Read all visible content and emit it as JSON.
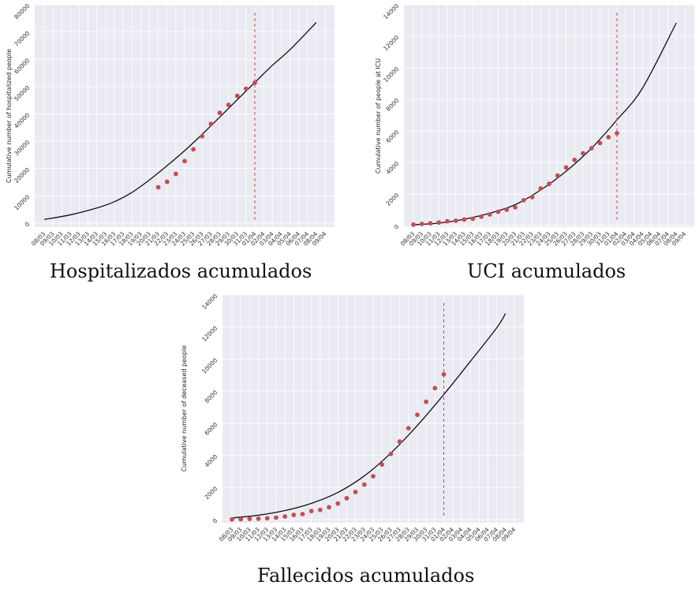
{
  "colors": {
    "plot_background": "#eaeaf2",
    "grid": "#ffffff",
    "observed_points": "#c44e52",
    "model_curve": "#111111",
    "vertical_marker": "#c44e52"
  },
  "chart_data": [
    {
      "id": "hospitalized",
      "type": "scatter",
      "title": "",
      "caption": "Hospitalizados acumulados",
      "xlabel": "",
      "ylabel": "Cumulative number of hospitalized people",
      "x_ticks": [
        "08/03",
        "09/03",
        "10/03",
        "11/03",
        "12/03",
        "13/03",
        "14/03",
        "15/03",
        "16/03",
        "17/03",
        "18/03",
        "19/03",
        "20/03",
        "21/03",
        "22/03",
        "23/03",
        "24/03",
        "25/03",
        "26/03",
        "27/03",
        "28/03",
        "29/03",
        "30/03",
        "31/03",
        "01/04",
        "02/04",
        "03/04",
        "04/04",
        "05/04",
        "06/04",
        "07/04",
        "08/04",
        "09/04"
      ],
      "y_ticks": [
        0,
        10000,
        20000,
        30000,
        40000,
        50000,
        60000,
        70000,
        80000
      ],
      "ylim": [
        -1500,
        80000
      ],
      "grid": true,
      "series": [
        {
          "kind": "observed",
          "x": [
            "21/03",
            "22/03",
            "23/03",
            "24/03",
            "25/03",
            "26/03",
            "27/03",
            "28/03",
            "29/03",
            "30/03",
            "31/03",
            "01/04"
          ],
          "values": [
            13100,
            15100,
            18000,
            22700,
            27000,
            31800,
            36300,
            40400,
            43300,
            46600,
            49200,
            51400
          ]
        },
        {
          "kind": "model",
          "x": [
            "08/03",
            "11/03",
            "14/03",
            "16/03",
            "18/03",
            "20/03",
            "22/03",
            "24/03",
            "26/03",
            "28/03",
            "30/03",
            "01/04",
            "03/04",
            "05/04",
            "08/04"
          ],
          "values": [
            1300,
            3000,
            5500,
            7800,
            11200,
            15800,
            21000,
            26500,
            32500,
            38800,
            45200,
            51500,
            57800,
            63500,
            73500
          ]
        }
      ],
      "vertical_marker_x": "01/04"
    },
    {
      "id": "icu",
      "type": "scatter",
      "title": "",
      "caption": "UCI acumulados",
      "xlabel": "",
      "ylabel": "Cumulative number of people at ICU",
      "x_ticks": [
        "08/03",
        "09/03",
        "10/03",
        "11/03",
        "12/03",
        "13/03",
        "14/03",
        "15/03",
        "16/03",
        "17/03",
        "18/03",
        "19/03",
        "20/03",
        "21/03",
        "22/03",
        "23/03",
        "24/03",
        "25/03",
        "26/03",
        "27/03",
        "28/03",
        "29/03",
        "30/03",
        "31/03",
        "01/04",
        "02/04",
        "03/04",
        "04/04",
        "05/04",
        "06/04",
        "07/04",
        "08/04",
        "09/04"
      ],
      "y_ticks": [
        0,
        2000,
        4000,
        6000,
        8000,
        10000,
        12000,
        14000
      ],
      "ylim": [
        -100,
        14000
      ],
      "grid": true,
      "series": [
        {
          "kind": "observed",
          "x": [
            "08/03",
            "09/03",
            "10/03",
            "11/03",
            "12/03",
            "13/03",
            "14/03",
            "15/03",
            "16/03",
            "17/03",
            "18/03",
            "19/03",
            "20/03",
            "21/03",
            "22/03",
            "23/03",
            "24/03",
            "25/03",
            "26/03",
            "27/03",
            "28/03",
            "29/03",
            "30/03",
            "31/03",
            "01/04"
          ],
          "values": [
            60,
            100,
            140,
            190,
            270,
            300,
            380,
            430,
            560,
            700,
            870,
            1000,
            1150,
            1600,
            1800,
            2350,
            2640,
            3170,
            3680,
            4160,
            4580,
            4900,
            5230,
            5600,
            5850
          ]
        },
        {
          "kind": "model",
          "x": [
            "08/03",
            "11/03",
            "14/03",
            "17/03",
            "20/03",
            "23/03",
            "26/03",
            "29/03",
            "01/04",
            "04/04",
            "08/04"
          ],
          "values": [
            50,
            150,
            400,
            780,
            1320,
            2250,
            3440,
            4900,
            6700,
            8700,
            12850
          ]
        }
      ],
      "vertical_marker_x": "01/04"
    },
    {
      "id": "deceased",
      "type": "scatter",
      "title": "",
      "caption": "Fallecidos acumulados",
      "xlabel": "",
      "ylabel": "Cumulative number of deceased people",
      "x_ticks": [
        "08/03",
        "09/03",
        "10/03",
        "11/03",
        "12/03",
        "13/03",
        "14/03",
        "15/03",
        "16/03",
        "17/03",
        "18/03",
        "19/03",
        "20/03",
        "21/03",
        "22/03",
        "23/03",
        "24/03",
        "25/03",
        "26/03",
        "27/03",
        "28/03",
        "29/03",
        "30/03",
        "31/03",
        "01/04",
        "02/04",
        "03/04",
        "04/04",
        "05/04",
        "06/04",
        "07/04",
        "08/04",
        "09/04"
      ],
      "y_ticks": [
        0,
        2000,
        4000,
        6000,
        8000,
        10000,
        12000,
        14000
      ],
      "ylim": [
        -200,
        14000
      ],
      "grid": true,
      "series": [
        {
          "kind": "observed",
          "x": [
            "08/03",
            "09/03",
            "10/03",
            "11/03",
            "12/03",
            "13/03",
            "14/03",
            "15/03",
            "16/03",
            "17/03",
            "18/03",
            "19/03",
            "20/03",
            "21/03",
            "22/03",
            "23/03",
            "24/03",
            "25/03",
            "26/03",
            "27/03",
            "28/03",
            "29/03",
            "30/03",
            "31/03",
            "01/04"
          ],
          "values": [
            10,
            20,
            40,
            50,
            80,
            120,
            190,
            290,
            340,
            530,
            600,
            770,
            1000,
            1330,
            1720,
            2180,
            2700,
            3430,
            4090,
            4860,
            5690,
            6530,
            7340,
            8190,
            9050
          ]
        },
        {
          "kind": "model",
          "x": [
            "08/03",
            "11/03",
            "14/03",
            "17/03",
            "20/03",
            "23/03",
            "26/03",
            "29/03",
            "01/04",
            "04/04",
            "07/04",
            "08/04"
          ],
          "values": [
            100,
            270,
            560,
            1010,
            1690,
            2720,
            4140,
            5860,
            7790,
            9850,
            11950,
            12850
          ]
        }
      ],
      "vertical_marker_x": "01/04"
    }
  ]
}
